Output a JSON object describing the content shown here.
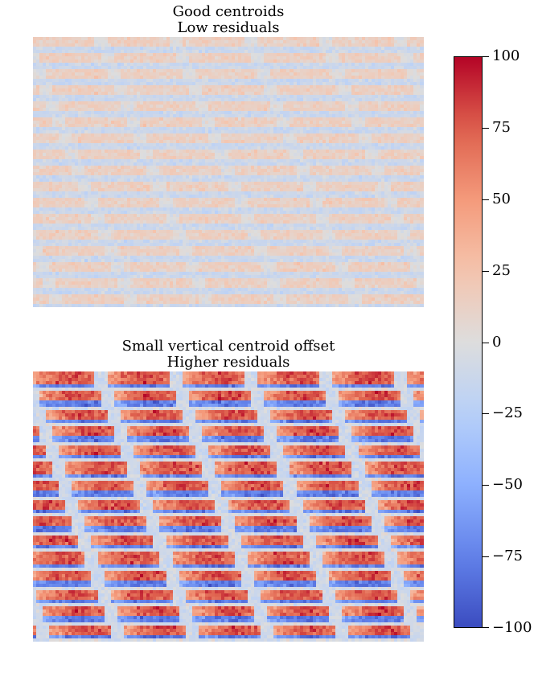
{
  "chart_data": [
    {
      "type": "heatmap",
      "panel": "top",
      "title_lines": [
        "Good centroids",
        "Low residuals"
      ],
      "value_range": [
        -30,
        40
      ],
      "pattern": "weak horizontal streaks of slightly positive and negative residuals around 0"
    },
    {
      "type": "heatmap",
      "panel": "bottom",
      "title_lines": [
        "Small vertical centroid offset",
        "Higher residuals"
      ],
      "value_range": [
        -100,
        100
      ],
      "pattern": "strong alternating horizontal stripes: positive (red) segments with negative (blue) bands beneath them"
    }
  ],
  "colorbar": {
    "colormap": "coolwarm",
    "min": -100,
    "max": 100,
    "ticks": [
      "100",
      "75",
      "50",
      "25",
      "0",
      "−25",
      "−50",
      "−75",
      "−100"
    ]
  }
}
